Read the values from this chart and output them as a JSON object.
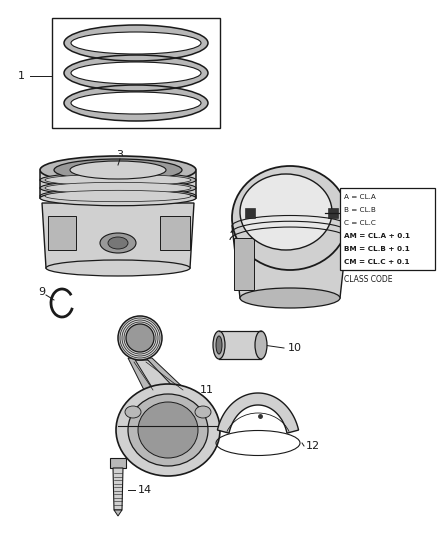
{
  "bg_color": "#ffffff",
  "lc": "#1a1a1a",
  "lc_light": "#666666",
  "gray1": "#e8e8e8",
  "gray2": "#d0d0d0",
  "gray3": "#b8b8b8",
  "gray4": "#999999",
  "gray5": "#777777",
  "fig_w": 4.38,
  "fig_h": 5.33,
  "dpi": 100,
  "class_code_lines": [
    "A = CL.A",
    "B = CL.B",
    "C = CL.C",
    "AM = CL.A + 0.1",
    "BM = CL.B + 0.1",
    "CM = CL.C + 0.1"
  ],
  "class_code_label": "CLASS CODE"
}
